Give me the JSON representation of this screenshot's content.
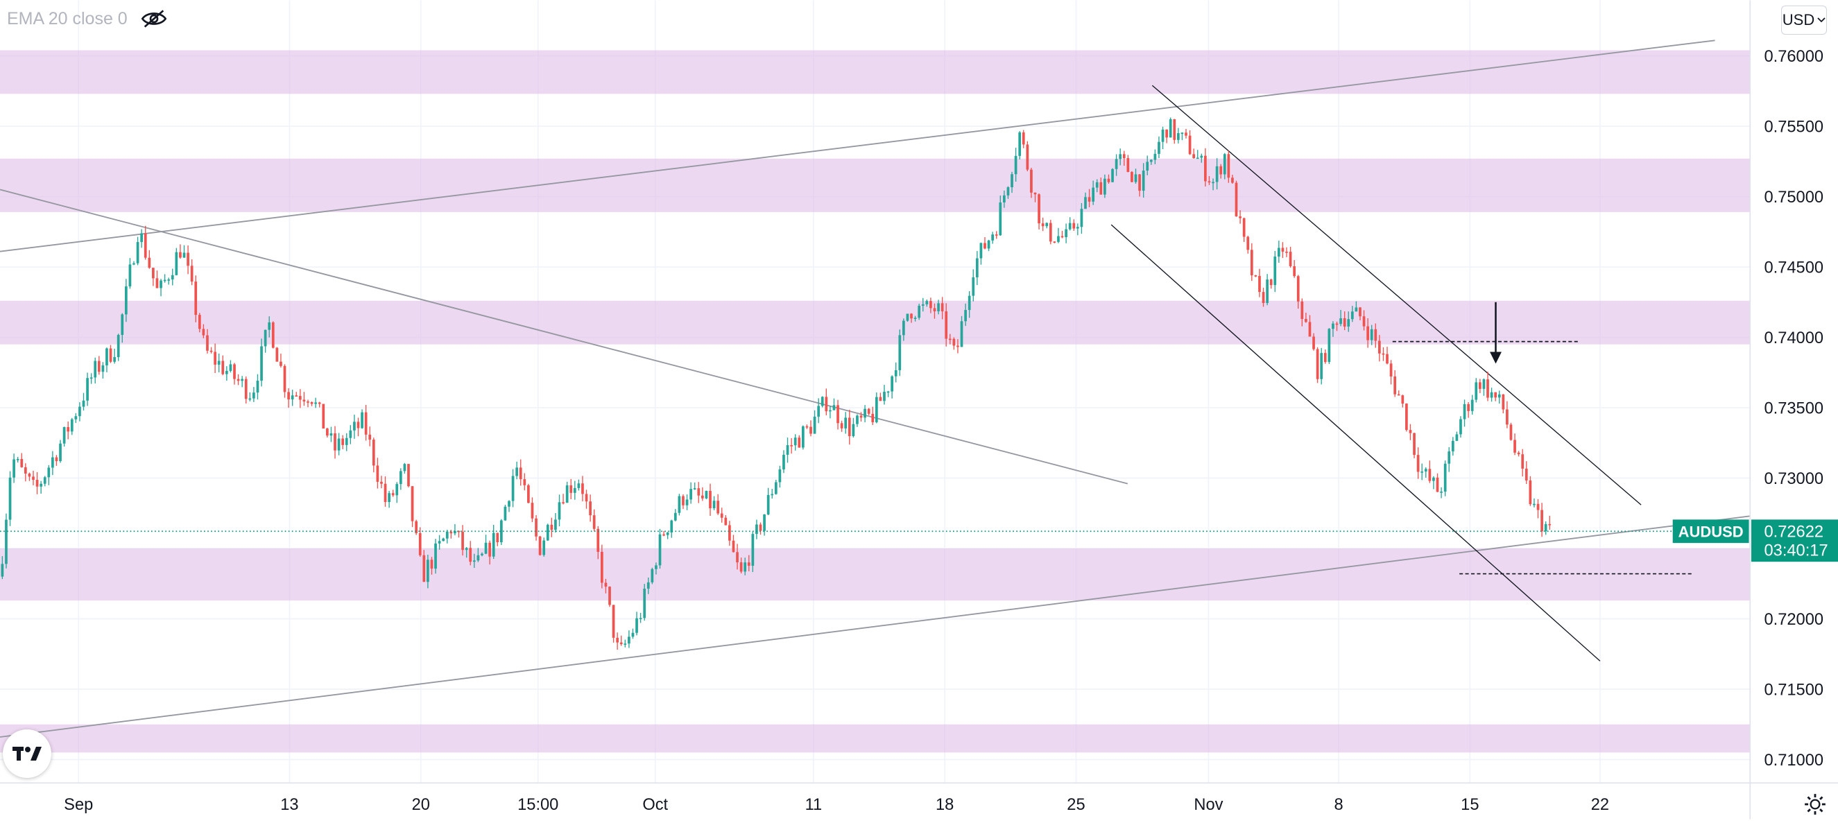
{
  "legend": {
    "indicator": "EMA 20 close 0",
    "visibility_icon": "eye-off-icon"
  },
  "currency": {
    "label": "USD",
    "icon": "chevron-down-icon"
  },
  "logo": {
    "text": "TV"
  },
  "settings_icon": "gear-icon",
  "colors": {
    "up": "#26a69a",
    "down": "#ef5350",
    "zone": "#e1bee7",
    "line": "#9598a1",
    "last_price": "#089981",
    "grid": "#f0f3fa"
  },
  "chart_data": {
    "type": "candlestick",
    "symbol": "AUDUSD",
    "last_price_label": "0.72622",
    "countdown": "03:40:17",
    "last_price": 0.72622,
    "y_ticks": [
      "0.76000",
      "0.75500",
      "0.75000",
      "0.74500",
      "0.74000",
      "0.73500",
      "0.73000",
      "0.72500",
      "0.72000",
      "0.71500",
      "0.71000"
    ],
    "x_ticks": [
      "Sep",
      "13",
      "20",
      "15:00",
      "Oct",
      "11",
      "18",
      "25",
      "Nov",
      "8",
      "15",
      "22"
    ],
    "ylim": [
      0.7087,
      0.7623
    ],
    "grid": true,
    "zones": [
      {
        "from": 0.7573,
        "to": 0.7604
      },
      {
        "from": 0.7489,
        "to": 0.7527
      },
      {
        "from": 0.7395,
        "to": 0.7426
      },
      {
        "from": 0.7213,
        "to": 0.725
      },
      {
        "from": 0.7105,
        "to": 0.7125
      }
    ],
    "path_anchors": [
      [
        0,
        0.723
      ],
      [
        10,
        0.7315
      ],
      [
        30,
        0.729
      ],
      [
        55,
        0.733
      ],
      [
        80,
        0.7375
      ],
      [
        100,
        0.7395
      ],
      [
        118,
        0.7478
      ],
      [
        135,
        0.743
      ],
      [
        155,
        0.7465
      ],
      [
        175,
        0.739
      ],
      [
        195,
        0.7375
      ],
      [
        215,
        0.736
      ],
      [
        230,
        0.741
      ],
      [
        245,
        0.736
      ],
      [
        265,
        0.736
      ],
      [
        285,
        0.732
      ],
      [
        310,
        0.734
      ],
      [
        330,
        0.728
      ],
      [
        345,
        0.7305
      ],
      [
        360,
        0.723
      ],
      [
        385,
        0.7265
      ],
      [
        405,
        0.7235
      ],
      [
        425,
        0.726
      ],
      [
        440,
        0.731
      ],
      [
        460,
        0.725
      ],
      [
        480,
        0.729
      ],
      [
        495,
        0.73
      ],
      [
        510,
        0.7245
      ],
      [
        528,
        0.7173
      ],
      [
        545,
        0.72
      ],
      [
        565,
        0.726
      ],
      [
        585,
        0.729
      ],
      [
        610,
        0.728
      ],
      [
        632,
        0.723
      ],
      [
        650,
        0.727
      ],
      [
        670,
        0.732
      ],
      [
        690,
        0.7335
      ],
      [
        705,
        0.7355
      ],
      [
        725,
        0.7335
      ],
      [
        745,
        0.7345
      ],
      [
        760,
        0.737
      ],
      [
        775,
        0.742
      ],
      [
        800,
        0.742
      ],
      [
        815,
        0.7385
      ],
      [
        830,
        0.745
      ],
      [
        850,
        0.748
      ],
      [
        870,
        0.7545
      ],
      [
        890,
        0.7475
      ],
      [
        910,
        0.747
      ],
      [
        930,
        0.75
      ],
      [
        955,
        0.7525
      ],
      [
        975,
        0.751
      ],
      [
        995,
        0.755
      ],
      [
        1015,
        0.7535
      ],
      [
        1035,
        0.751
      ],
      [
        1045,
        0.753
      ],
      [
        1060,
        0.747
      ],
      [
        1075,
        0.7425
      ],
      [
        1095,
        0.7465
      ],
      [
        1110,
        0.742
      ],
      [
        1125,
        0.7375
      ],
      [
        1140,
        0.7415
      ],
      [
        1160,
        0.7415
      ],
      [
        1175,
        0.7395
      ],
      [
        1195,
        0.7355
      ],
      [
        1212,
        0.7305
      ],
      [
        1228,
        0.729
      ],
      [
        1245,
        0.734
      ],
      [
        1262,
        0.737
      ],
      [
        1282,
        0.735
      ],
      [
        1297,
        0.7305
      ],
      [
        1310,
        0.7275
      ],
      [
        1322,
        0.7262
      ]
    ],
    "trendlines": [
      [
        0,
        0.7461,
        1463,
        0.7611
      ],
      [
        0,
        0.7505,
        962,
        0.7296
      ],
      [
        0,
        0.7116,
        1493,
        0.7273
      ],
      [
        983,
        0.7579,
        1400,
        0.7281
      ],
      [
        948,
        0.748,
        1365,
        0.717
      ]
    ],
    "dashed_lines": [
      [
        1188,
        1348,
        0.7397
      ],
      [
        1245,
        1445,
        0.7232
      ]
    ],
    "arrow": {
      "x": 1276,
      "from": 0.7425,
      "to": 0.7383
    }
  }
}
